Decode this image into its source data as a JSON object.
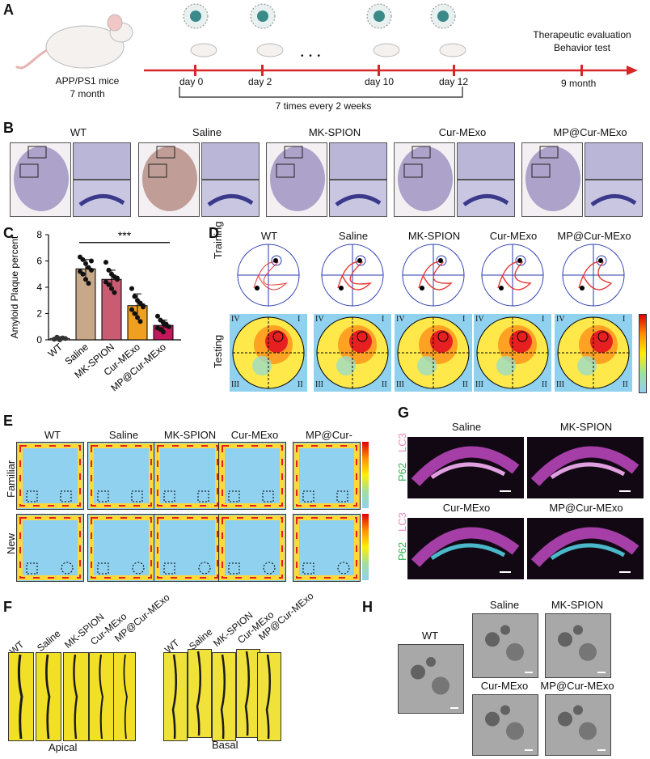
{
  "panels": {
    "A": "A",
    "B": "B",
    "C": "C",
    "D": "D",
    "E": "E",
    "F": "F",
    "G": "G",
    "H": "H"
  },
  "panelA": {
    "mice_line1": "APP/PS1 mice",
    "mice_line2": "7 month",
    "days": [
      "day 0",
      "day 2",
      "day 10",
      "day 12"
    ],
    "ellipsis": "• • •",
    "interval": "7  times every 2 weeks",
    "eval_line1": "Therapeutic evaluation",
    "eval_line2": "Behavior test",
    "endpoint": "9 month",
    "colors": {
      "timeline": "#d62728"
    }
  },
  "groups": [
    "WT",
    "Saline",
    "MK-SPION",
    "Cur-MExo",
    "MP@Cur-MExo"
  ],
  "panelD": {
    "training": "Training",
    "testing": "Testing",
    "quadrants": [
      "IV",
      "I",
      "III",
      "II"
    ]
  },
  "panelE": {
    "familiar": "Familiar",
    "new": "New"
  },
  "panelF": {
    "apical": "Apical",
    "basal": "Basal"
  },
  "panelG": {
    "titles": [
      "Saline",
      "MK-SPION",
      "Cur-MExo",
      "MP@Cur-MExo"
    ],
    "lc3": "LC3",
    "p62": "P62"
  },
  "panelH": {
    "titles": [
      "WT",
      "Saline",
      "MK-SPION",
      "Cur-MExo",
      "MP@Cur-MExo"
    ]
  },
  "chart_data": {
    "type": "bar",
    "categories": [
      "WT",
      "Saline",
      "MK-SPION",
      "Cur-MExo",
      "MP@Cur-MExo"
    ],
    "values": [
      0.1,
      5.4,
      4.6,
      2.6,
      1.1
    ],
    "errors": [
      0.1,
      0.7,
      0.7,
      0.9,
      0.4
    ],
    "points": [
      [
        0.05,
        0.1,
        0.0,
        0.15,
        0.1,
        0.05,
        0.2,
        0.1
      ],
      [
        6.3,
        6.1,
        5.8,
        5.5,
        5.3,
        5.2,
        5.0,
        4.6,
        4.3,
        6.0
      ],
      [
        5.9,
        5.3,
        5.0,
        4.8,
        4.6,
        4.4,
        4.2,
        3.9,
        3.6,
        4.7
      ],
      [
        3.9,
        3.3,
        3.0,
        2.8,
        2.6,
        2.3,
        2.0,
        1.7,
        1.4,
        2.5
      ],
      [
        1.8,
        1.5,
        1.3,
        1.2,
        1.0,
        0.9,
        0.8,
        0.6,
        1.1
      ]
    ],
    "ylabel": "Amyloid Plaque percent",
    "yticks": [
      0,
      2,
      4,
      6,
      8
    ],
    "ylim": [
      0,
      8
    ],
    "significance": "***",
    "colors": [
      "#e8e8e8",
      "#c7a98a",
      "#c95b72",
      "#f0a020",
      "#c2185b"
    ]
  }
}
